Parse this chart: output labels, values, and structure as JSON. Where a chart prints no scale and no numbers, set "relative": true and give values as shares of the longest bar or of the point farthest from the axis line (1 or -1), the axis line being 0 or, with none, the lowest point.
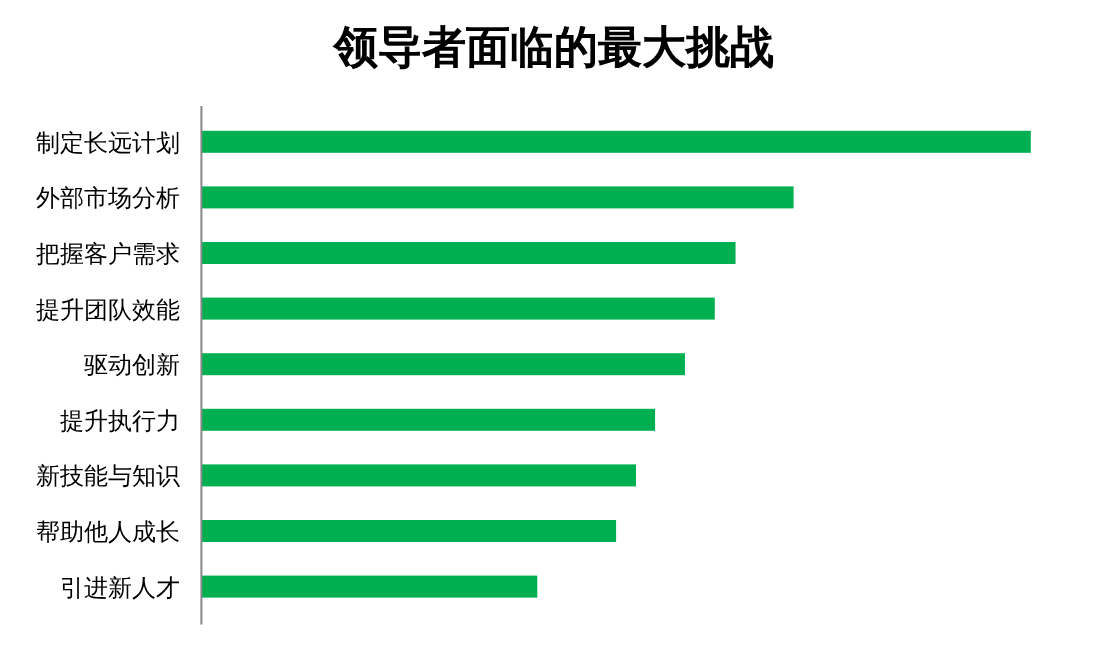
{
  "chart_data": {
    "type": "bar",
    "orientation": "horizontal",
    "relative": true,
    "title": "领导者面临的最大挑战",
    "categories": [
      "制定长远计划",
      "外部市场分析",
      "把握客户需求",
      "提升团队效能",
      "驱动创新",
      "提升执行力",
      "新技能与知识",
      "帮助他人成长",
      "引进新人才"
    ],
    "values": [
      1,
      0.714,
      0.644,
      0.619,
      0.583,
      0.547,
      0.524,
      0.5,
      0.405
    ],
    "color": "#00b050"
  }
}
